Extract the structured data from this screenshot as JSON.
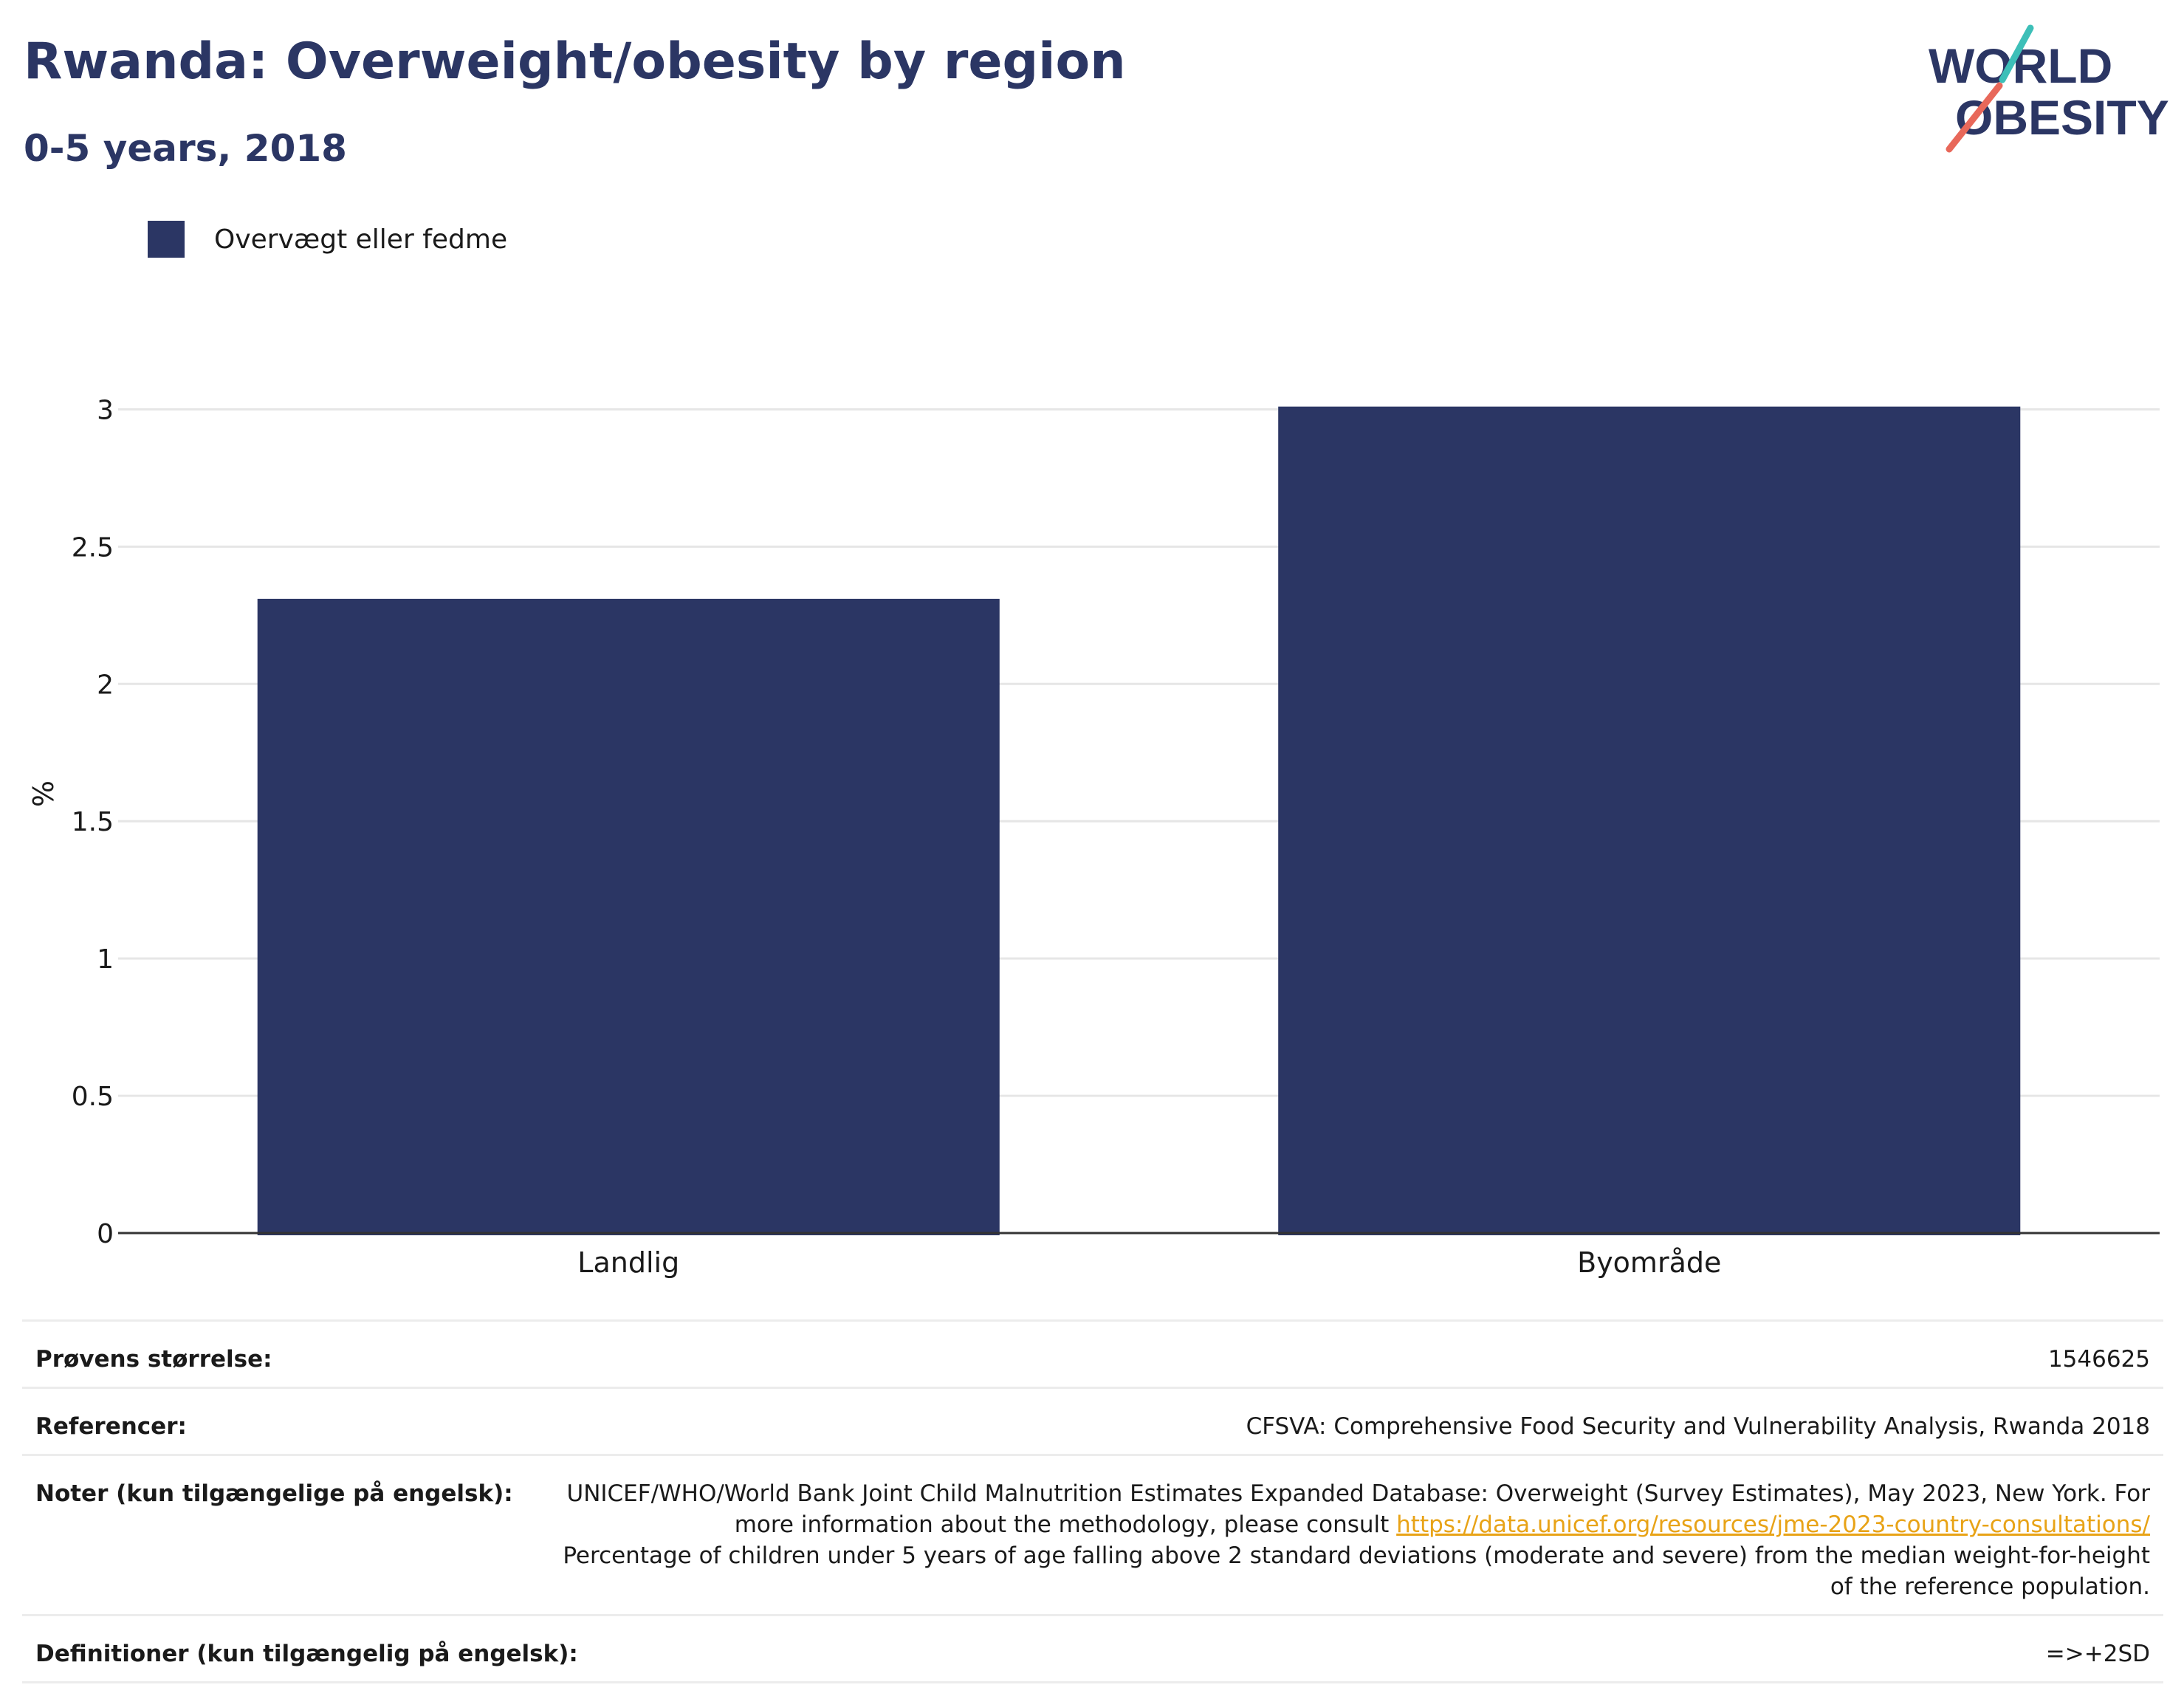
{
  "header": {
    "title": "Rwanda: Overweight/obesity by region",
    "subtitle": "0-5 years, 2018"
  },
  "logo": {
    "line1": "WORLD",
    "line2": "OBESITY",
    "colors": {
      "text": "#2b3664",
      "slash_top": "#3dbfb8",
      "slash_bottom": "#e8685a"
    }
  },
  "colors": {
    "bar": "#2b3664",
    "grid": "#e6e6e6",
    "axis": "#333333",
    "link": "#e8a317"
  },
  "chart_data": {
    "type": "bar",
    "categories": [
      "Landlig",
      "Byområde"
    ],
    "series": [
      {
        "name": "Overvægt eller fedme",
        "values": [
          2.31,
          3.01
        ]
      }
    ],
    "ylabel": "%",
    "xlabel": "",
    "ylim": [
      0,
      3.2
    ],
    "yticks": [
      0,
      0.5,
      1,
      1.5,
      2,
      2.5,
      3
    ],
    "ytick_labels": [
      "0",
      "0.5",
      "1",
      "1.5",
      "2",
      "2.5",
      "3"
    ],
    "grid": true,
    "legend_position": "top-left"
  },
  "notes": {
    "sample_size_label": "Prøvens størrelse:",
    "sample_size_value": "1546625",
    "references_label": "Referencer:",
    "references_value": "CFSVA: Comprehensive Food Security and Vulnerability Analysis, Rwanda 2018",
    "notes_label": "Noter (kun tilgængelige på engelsk):",
    "notes_value_1": "UNICEF/WHO/World Bank Joint Child Malnutrition Estimates Expanded Database: Overweight (Survey Estimates), May 2023, New York. For more information about the methodology, please consult",
    "notes_link": "https://data.unicef.org/resources/jme-2023-country-consultations/",
    "notes_value_2": "Percentage of children under 5 years of age falling above 2 standard deviations (moderate and severe) from the median weight-for-height of the reference population.",
    "definitions_label": "Definitioner (kun tilgængelig på engelsk):",
    "definitions_value": "=>+2SD"
  }
}
